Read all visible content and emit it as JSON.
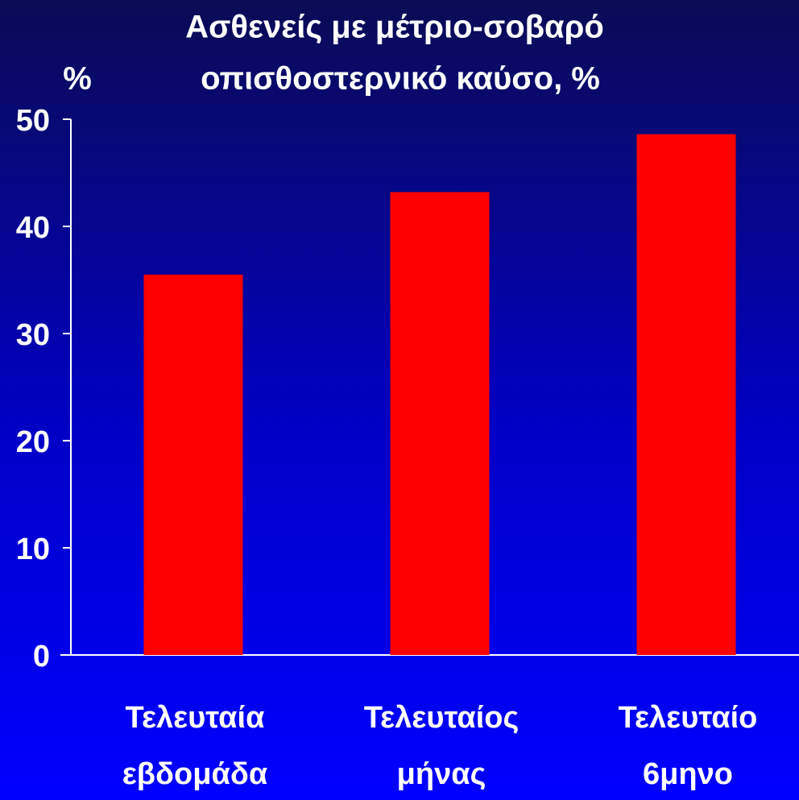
{
  "chart_data": {
    "type": "bar",
    "title": [
      "Ασθενείς με μέτριο-σοβαρό",
      "οπισθοστερνικό καύσο, %"
    ],
    "y_label": "%",
    "categories": [
      [
        "Τελευταία",
        "εβδομάδα"
      ],
      [
        "Τελευταίος",
        "μήνας"
      ],
      [
        "Τελευταίο",
        "6μηνο"
      ]
    ],
    "values": [
      35.5,
      43.2,
      48.6
    ],
    "color": "#ff0000",
    "ylim": [
      0,
      50
    ],
    "yticks": [
      0,
      10,
      20,
      30,
      40,
      50
    ],
    "grid": false
  }
}
